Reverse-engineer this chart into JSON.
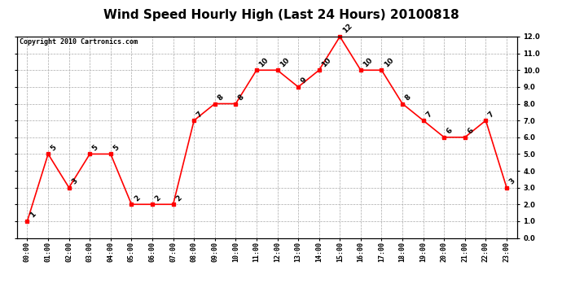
{
  "title": "Wind Speed Hourly High (Last 24 Hours) 20100818",
  "copyright": "Copyright 2010 Cartronics.com",
  "hours": [
    "00:00",
    "01:00",
    "02:00",
    "03:00",
    "04:00",
    "05:00",
    "06:00",
    "07:00",
    "08:00",
    "09:00",
    "10:00",
    "11:00",
    "12:00",
    "13:00",
    "14:00",
    "15:00",
    "16:00",
    "17:00",
    "18:00",
    "19:00",
    "20:00",
    "21:00",
    "22:00",
    "23:00"
  ],
  "values": [
    1,
    5,
    3,
    5,
    5,
    2,
    2,
    2,
    7,
    8,
    8,
    10,
    10,
    9,
    10,
    12,
    10,
    10,
    8,
    7,
    6,
    6,
    7,
    3
  ],
  "ylim": [
    0.0,
    12.0
  ],
  "yticks": [
    0.0,
    1.0,
    2.0,
    3.0,
    4.0,
    5.0,
    6.0,
    7.0,
    8.0,
    9.0,
    10.0,
    11.0,
    12.0
  ],
  "line_color": "red",
  "marker_color": "red",
  "marker": "s",
  "marker_size": 3,
  "grid_color": "#aaaaaa",
  "bg_color": "white",
  "title_fontsize": 11,
  "annot_fontsize": 6.5,
  "copyright_fontsize": 6,
  "tick_fontsize": 6,
  "figwidth": 6.9,
  "figheight": 3.75,
  "dpi": 100
}
